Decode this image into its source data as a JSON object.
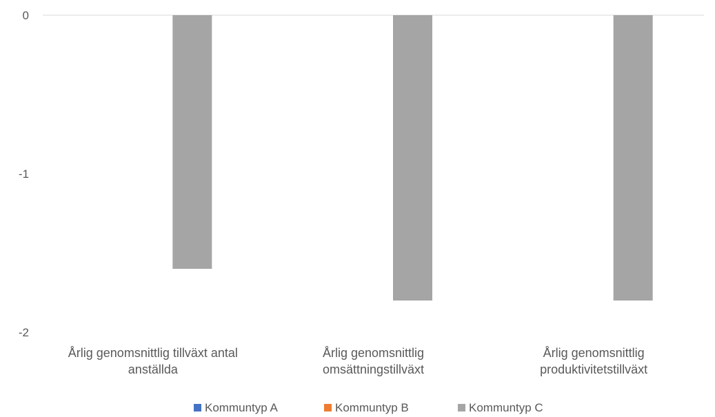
{
  "chart_data": {
    "type": "bar",
    "title": "",
    "xlabel": "",
    "ylabel": "",
    "categories": [
      [
        "Årlig genomsnittlig tillväxt antal",
        "anställda"
      ],
      [
        "Årlig genomsnittlig",
        "omsättningstillväxt"
      ],
      [
        "Årlig genomsnittlig",
        "produktivitetstillväxt"
      ]
    ],
    "series": [
      {
        "name": "Kommuntyp A",
        "color": "#4472C4",
        "values": [
          0,
          0,
          0
        ]
      },
      {
        "name": "Kommuntyp B",
        "color": "#ED7D31",
        "values": [
          0,
          0,
          0
        ]
      },
      {
        "name": "Kommuntyp C",
        "color": "#A5A5A5",
        "values": [
          -1.6,
          -1.8,
          -1.8
        ]
      }
    ],
    "ylim": [
      -2,
      0
    ],
    "yticks": [
      0,
      -1,
      -2
    ],
    "grid": false,
    "legend": "bottom"
  }
}
